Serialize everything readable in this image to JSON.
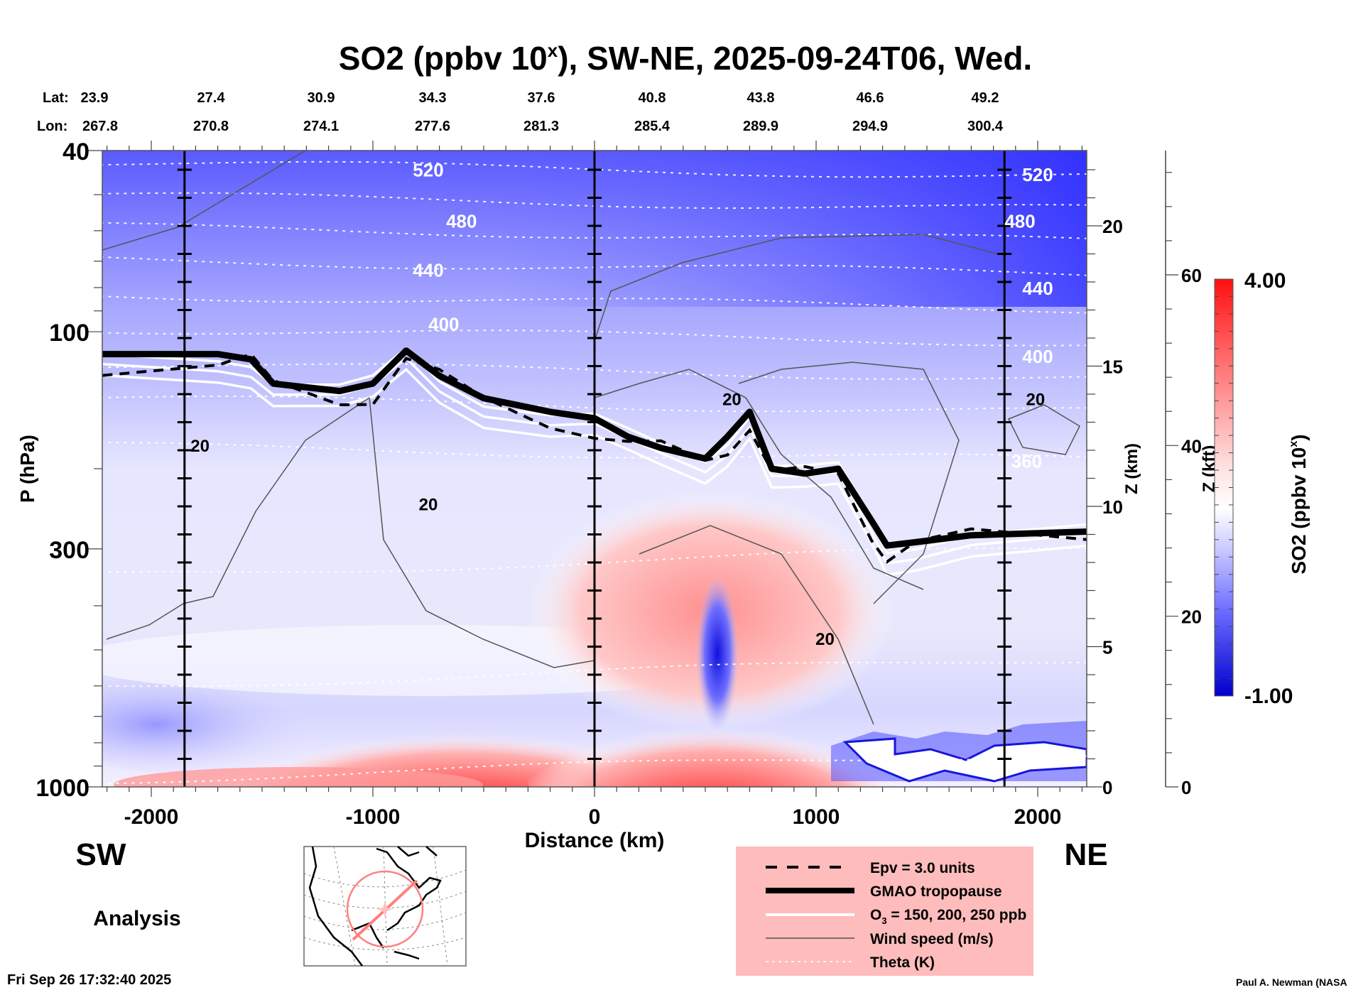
{
  "chart_data": {
    "type": "heatmap",
    "title": "SO2 (ppbv 10",
    "title_sup": "x",
    "title_rest": "), SW-NE, 2025-09-24T06, Wed.",
    "lat_label": "Lat:",
    "lon_label": "Lon:",
    "lat_values": [
      "23.9",
      "27.4",
      "30.9",
      "34.3",
      "37.6",
      "40.8",
      "43.8",
      "46.6",
      "49.2"
    ],
    "lon_values": [
      "267.8",
      "270.8",
      "274.1",
      "277.6",
      "281.3",
      "285.4",
      "289.9",
      "294.9",
      "300.4"
    ],
    "xlabel": "Distance (km)",
    "xlim": [
      -2220,
      2220
    ],
    "xticks": [
      -2000,
      -1000,
      0,
      1000,
      2000
    ],
    "xtick_labels": [
      "-2000",
      "-1000",
      "0",
      "1000",
      "2000"
    ],
    "ylabel": "P (hPa)",
    "yscale": "log",
    "ylim": [
      1000,
      40
    ],
    "yticks": [
      40,
      100,
      300,
      1000
    ],
    "ytick_labels": [
      "40",
      "100",
      "300",
      "1000"
    ],
    "y2label": "Z (km)",
    "y2ticks": [
      0,
      5,
      10,
      15,
      20
    ],
    "y2tick_labels": [
      "0",
      "5",
      "10",
      "15",
      "20"
    ],
    "y3label": "Z (kft)",
    "y3ticks": [
      0,
      20,
      40,
      60
    ],
    "y3tick_labels": [
      "0",
      "20",
      "40",
      "60"
    ],
    "vertical_markers_km": [
      -1850,
      0,
      1850
    ],
    "theta_labels": [
      {
        "text": "520",
        "x": -750,
        "p": 44
      },
      {
        "text": "480",
        "x": -600,
        "p": 57
      },
      {
        "text": "440",
        "x": -750,
        "p": 73
      },
      {
        "text": "400",
        "x": -680,
        "p": 96
      },
      {
        "text": "520",
        "x": 2000,
        "p": 45
      },
      {
        "text": "480",
        "x": 1920,
        "p": 57
      },
      {
        "text": "440",
        "x": 2000,
        "p": 80
      },
      {
        "text": "400",
        "x": 2000,
        "p": 113
      },
      {
        "text": "360",
        "x": 1950,
        "p": 192
      }
    ],
    "wind_labels": [
      {
        "text": "20",
        "x": -1780,
        "p": 177
      },
      {
        "text": "20",
        "x": -750,
        "p": 238
      },
      {
        "text": "20",
        "x": 620,
        "p": 140
      },
      {
        "text": "20",
        "x": 1040,
        "p": 470
      },
      {
        "text": "20",
        "x": 1990,
        "p": 140
      }
    ],
    "tropopause_p": {
      "x": [
        -2220,
        -1700,
        -1550,
        -1450,
        -1150,
        -1000,
        -850,
        -700,
        -500,
        -200,
        0,
        150,
        300,
        500,
        600,
        700,
        800,
        950,
        1100,
        1250,
        1320,
        1450,
        1700,
        2220
      ],
      "p": [
        112,
        112,
        115,
        130,
        135,
        130,
        110,
        125,
        140,
        150,
        155,
        170,
        180,
        190,
        170,
        150,
        200,
        205,
        200,
        260,
        295,
        290,
        280,
        275
      ]
    },
    "colorbar": {
      "label": "SO2 (ppbv 10",
      "label_sup": "x",
      "label_end": ")",
      "min_label": "-1.00",
      "max_label": "4.00",
      "min": -1.0,
      "max": 4.0,
      "levels": 24,
      "low_color": "#0000cc",
      "mid_color": "#ffffff",
      "high_color": "#ff1010"
    },
    "direction_left": "SW",
    "direction_right": "NE",
    "legend": [
      {
        "label": "Epv = 3.0 units",
        "style": "dashed-black"
      },
      {
        "label": "GMAO tropopause",
        "style": "thick-black"
      },
      {
        "label_pre": "O",
        "label_sub": "3",
        "label_post": " = 150, 200, 250 ppb",
        "style": "white"
      },
      {
        "label": "Wind speed (m/s)",
        "style": "thin-gray"
      },
      {
        "label": "Theta (K)",
        "style": "dotted-white"
      }
    ],
    "legend_bg": "#ffbcbc"
  },
  "footer": {
    "analysis_label": "Analysis",
    "timestamp": "Fri Sep 26 17:32:40 2025",
    "credit": "Paul A. Newman (NASA"
  }
}
